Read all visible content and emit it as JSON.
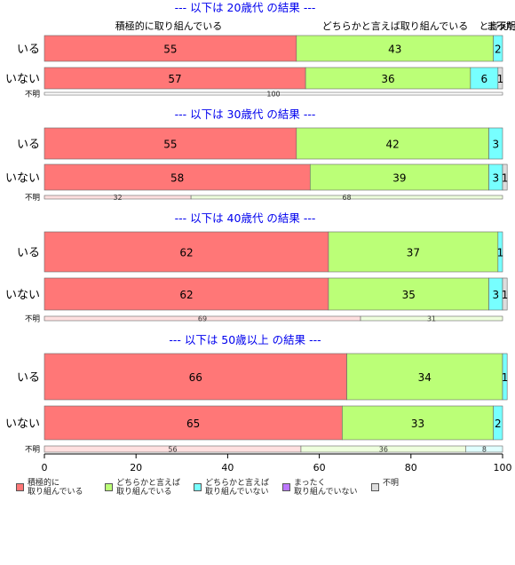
{
  "chart_data": {
    "type": "bar",
    "orientation": "horizontal",
    "stacked": true,
    "xlim": [
      0,
      100
    ],
    "xticks": [
      "0",
      "20",
      "40",
      "60",
      "80",
      "100"
    ],
    "legend_position": "bottom",
    "colors": [
      "#FF7777",
      "#BBFF77",
      "#77FFFF",
      "#BB77FF",
      "#DDDDDD"
    ],
    "legend": [
      "積極的に\n取り組んでいる",
      "どちらかと言えば\n取り組んでいる",
      "どちらかと言えば\n取り組んでいない",
      "まったく\n取り組んでいない",
      "不明"
    ],
    "column_headers": [
      "積極的に取り組んでいる",
      "どちらかと言えば取り組んでいる",
      "どちらかと言えば取り組んでいない",
      "まったく取り組んでいない",
      "不明"
    ],
    "column_header_abbrev": [
      "",
      "",
      "と言え",
      "まった",
      "不明."
    ],
    "panels": [
      {
        "title": "--- 以下は 20歳代 の結果 ---",
        "rows": [
          {
            "label": "いる",
            "values": [
              55,
              43,
              2,
              0,
              0
            ]
          },
          {
            "label": "いない",
            "values": [
              57,
              36,
              6,
              0,
              1
            ]
          },
          {
            "label": "不明",
            "values": [
              100,
              0,
              0,
              0,
              0
            ],
            "thin": true,
            "lightColors": [
              "#FFFFFF",
              "#FFFFFF",
              "#FFFFFF",
              "#FFFFFF",
              "#FFFFFF"
            ]
          }
        ]
      },
      {
        "title": "--- 以下は 30歳代 の結果 ---",
        "rows": [
          {
            "label": "いる",
            "values": [
              55,
              42,
              3,
              0,
              0
            ]
          },
          {
            "label": "いない",
            "values": [
              58,
              39,
              3,
              0,
              1
            ]
          },
          {
            "label": "不明",
            "values": [
              32,
              68,
              0,
              0,
              0
            ],
            "thin": true
          }
        ]
      },
      {
        "title": "--- 以下は 40歳代 の結果 ---",
        "rows": [
          {
            "label": "いる",
            "values": [
              62,
              37,
              1,
              0,
              0
            ]
          },
          {
            "label": "いない",
            "values": [
              62,
              35,
              3,
              0,
              1
            ]
          },
          {
            "label": "不明",
            "values": [
              69,
              31,
              0,
              0,
              0
            ],
            "thin": true
          }
        ]
      },
      {
        "title": "--- 以下は 50歳以上 の結果 ---",
        "rows": [
          {
            "label": "いる",
            "values": [
              66,
              34,
              1,
              0,
              0
            ]
          },
          {
            "label": "いない",
            "values": [
              65,
              33,
              2,
              0,
              0
            ]
          },
          {
            "label": "不明",
            "values": [
              56,
              36,
              8,
              0,
              0
            ],
            "thin": true
          }
        ]
      }
    ]
  }
}
